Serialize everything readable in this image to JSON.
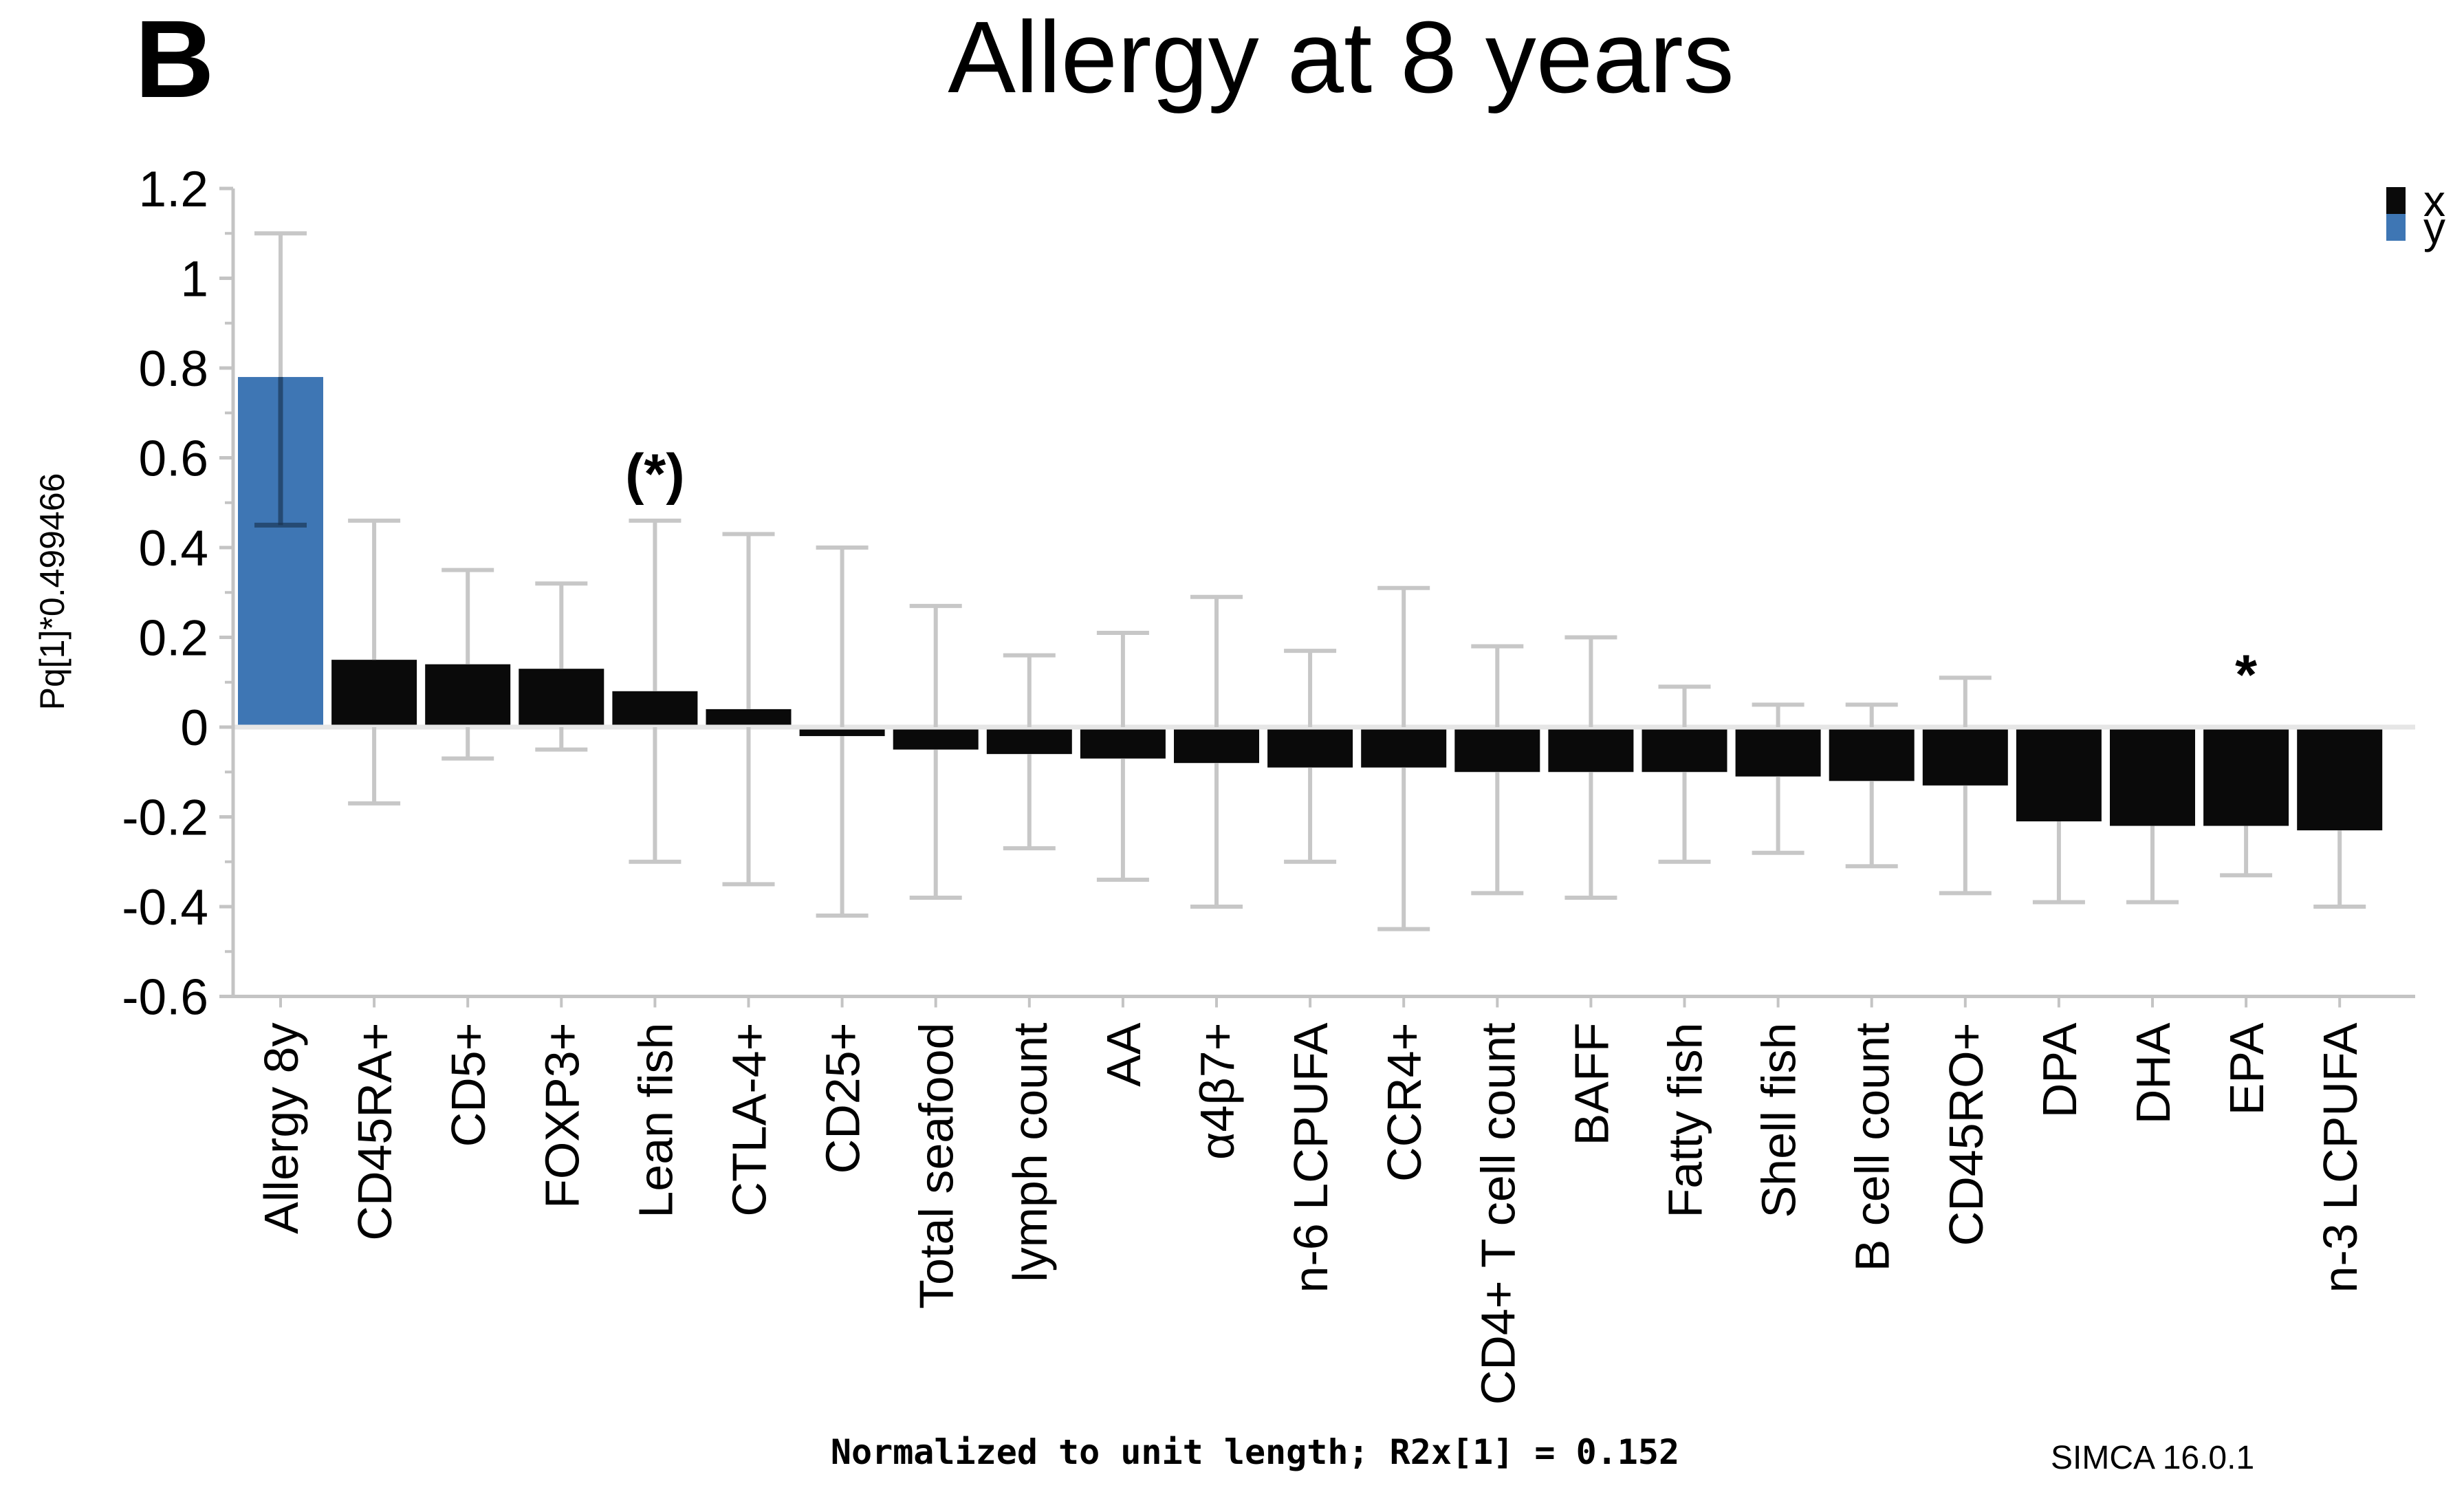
{
  "figure_label": "B",
  "title": "Allergy at 8 years",
  "legend": {
    "items": [
      {
        "label": "x",
        "color": "#0a0a0a"
      },
      {
        "label": "y",
        "color": "#3e76b4"
      }
    ]
  },
  "footer": {
    "note": "Normalized to unit length; R2x[1] = 0.152",
    "software": "SIMCA 16.0.1"
  },
  "colors": {
    "bar_x": "#0a0a0a",
    "bar_y": "#3e76b4",
    "error_bar": "#c7c7c7",
    "error_bar_inner": "rgba(25,50,80,0.65)",
    "axis": "#c4c4c4",
    "zero_line": "#e6e6e6",
    "text": "#000000"
  },
  "chart_data": {
    "type": "bar",
    "title": "Allergy at 8 years",
    "xlabel": "",
    "ylabel": "Pq[1]*0.499466",
    "ylim": [
      -0.6,
      1.2
    ],
    "ytick_step": 0.2,
    "ytick_minor_step": 0.1,
    "ytick_labels": [
      "1.2",
      "1",
      "0.8",
      "0.6",
      "0.4",
      "0.2",
      "0",
      "-0.2",
      "-0.4",
      "-0.6"
    ],
    "grid": false,
    "legend_position": "top-right",
    "categories": [
      "Allergy 8y",
      "CD45RA+",
      "CD5+",
      "FOXP3+",
      "Lean fish",
      "CTLA-4+",
      "CD25+",
      "Total seafood",
      "lymph count",
      "AA",
      "α4β7+",
      "n-6 LCPUFA",
      "CCR4+",
      "CD4+ T cell count",
      "BAFF",
      "Fatty fish",
      "Shell fish",
      "B cell count",
      "CD45RO+",
      "DPA",
      "DHA",
      "EPA",
      "n-3 LCPUFA"
    ],
    "series_class": [
      "y",
      "x",
      "x",
      "x",
      "x",
      "x",
      "x",
      "x",
      "x",
      "x",
      "x",
      "x",
      "x",
      "x",
      "x",
      "x",
      "x",
      "x",
      "x",
      "x",
      "x",
      "x",
      "x"
    ],
    "values": [
      0.78,
      0.15,
      0.14,
      0.13,
      0.08,
      0.04,
      -0.02,
      -0.05,
      -0.06,
      -0.07,
      -0.08,
      -0.09,
      -0.09,
      -0.1,
      -0.1,
      -0.1,
      -0.11,
      -0.12,
      -0.13,
      -0.21,
      -0.22,
      -0.22,
      -0.23
    ],
    "error_low": [
      0.45,
      -0.17,
      -0.07,
      -0.05,
      -0.3,
      -0.35,
      -0.42,
      -0.38,
      -0.27,
      -0.34,
      -0.4,
      -0.3,
      -0.45,
      -0.37,
      -0.38,
      -0.3,
      -0.28,
      -0.31,
      -0.37,
      -0.39,
      -0.39,
      -0.33,
      -0.4
    ],
    "error_high": [
      1.1,
      0.46,
      0.35,
      0.32,
      0.46,
      0.43,
      0.4,
      0.27,
      0.16,
      0.21,
      0.29,
      0.17,
      0.31,
      0.18,
      0.2,
      0.09,
      0.05,
      0.05,
      0.11,
      -0.03,
      -0.05,
      -0.11,
      -0.05
    ],
    "annotations": [
      {
        "category": "Lean fish",
        "text": "(*)"
      },
      {
        "category": "EPA",
        "text": "*"
      }
    ]
  }
}
